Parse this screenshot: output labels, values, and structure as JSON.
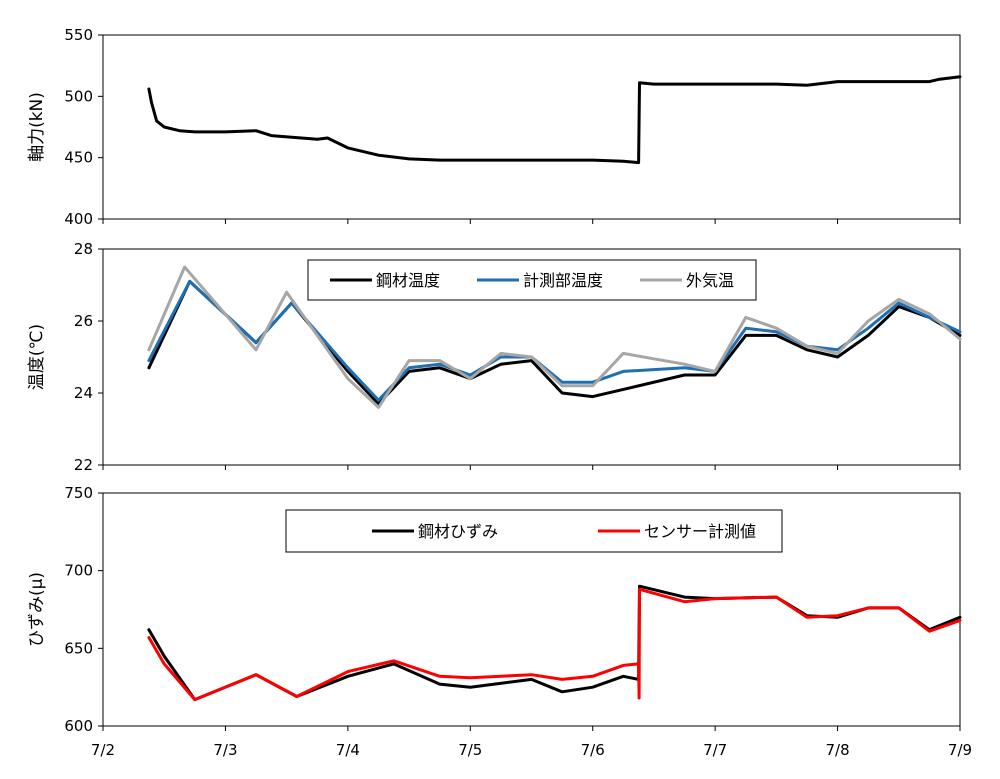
{
  "chart_data": [
    {
      "type": "line",
      "ylabel": "軸力(kN)",
      "ylim": [
        400,
        550
      ],
      "yticks": [
        "400",
        "450",
        "500",
        "550"
      ],
      "xlim": [
        "7/2",
        "7/9"
      ],
      "series": [
        {
          "color": "#000000",
          "x": [
            "7/2 09:00",
            "7/2 09:30",
            "7/2 10:30",
            "7/2 12:00",
            "7/2 15:00",
            "7/2 18:00",
            "7/3 00:00",
            "7/3 06:00",
            "7/3 09:00",
            "7/3 18:00",
            "7/3 20:00",
            "7/4 00:00",
            "7/4 06:00",
            "7/4 12:00",
            "7/4 18:00",
            "7/5 00:00",
            "7/5 12:00",
            "7/5 18:00",
            "7/6 00:00",
            "7/6 06:00",
            "7/6 09:00",
            "7/6 09:10",
            "7/6 12:00",
            "7/7 00:00",
            "7/7 12:00",
            "7/7 18:00",
            "7/8 00:00",
            "7/8 12:00",
            "7/8 18:00",
            "7/8 20:00",
            "7/9 00:00"
          ],
          "values": [
            506,
            495,
            480,
            475,
            472,
            471,
            471,
            472,
            468,
            465,
            466,
            458,
            452,
            449,
            448,
            448,
            448,
            448,
            448,
            447,
            446,
            511,
            510,
            510,
            510,
            509,
            512,
            512,
            512,
            514,
            516
          ]
        }
      ]
    },
    {
      "type": "line",
      "ylabel": "温度(℃)",
      "ylim": [
        22,
        28
      ],
      "yticks": [
        "22",
        "24",
        "26",
        "28"
      ],
      "xlim": [
        "7/2",
        "7/9"
      ],
      "legend": "top-center",
      "series": [
        {
          "name": "鋼材温度",
          "color": "#000000",
          "x": [
            "7/2 09:00",
            "7/2 17:00",
            "7/3 06:00",
            "7/3 13:00",
            "7/4 00:00",
            "7/4 06:00",
            "7/4 12:00",
            "7/4 18:00",
            "7/5 00:00",
            "7/5 06:00",
            "7/5 12:00",
            "7/5 18:00",
            "7/6 00:00",
            "7/6 06:00",
            "7/6 18:00",
            "7/7 00:00",
            "7/7 06:00",
            "7/7 12:00",
            "7/7 18:00",
            "7/8 00:00",
            "7/8 06:00",
            "7/8 12:00",
            "7/8 18:00",
            "7/9 00:00"
          ],
          "values": [
            24.7,
            27.1,
            25.4,
            26.5,
            24.6,
            23.7,
            24.6,
            24.7,
            24.4,
            24.8,
            24.9,
            24.0,
            23.9,
            24.1,
            24.5,
            24.5,
            25.6,
            25.6,
            25.2,
            25.0,
            25.6,
            26.4,
            26.1,
            25.6
          ]
        },
        {
          "name": "計測部温度",
          "color": "#1f6fb2",
          "x": [
            "7/2 09:00",
            "7/2 17:00",
            "7/3 06:00",
            "7/3 13:00",
            "7/4 00:00",
            "7/4 06:00",
            "7/4 12:00",
            "7/4 18:00",
            "7/5 00:00",
            "7/5 06:00",
            "7/5 12:00",
            "7/5 18:00",
            "7/6 00:00",
            "7/6 06:00",
            "7/6 18:00",
            "7/7 00:00",
            "7/7 06:00",
            "7/7 12:00",
            "7/7 18:00",
            "7/8 00:00",
            "7/8 06:00",
            "7/8 12:00",
            "7/8 18:00",
            "7/9 00:00"
          ],
          "values": [
            24.9,
            27.1,
            25.4,
            26.5,
            24.7,
            23.8,
            24.7,
            24.8,
            24.5,
            25.0,
            25.0,
            24.3,
            24.3,
            24.6,
            24.7,
            24.6,
            25.8,
            25.7,
            25.3,
            25.2,
            25.8,
            26.5,
            26.1,
            25.7
          ]
        },
        {
          "name": "外気温",
          "color": "#a6a6a6",
          "x": [
            "7/2 09:00",
            "7/2 16:00",
            "7/3 06:00",
            "7/3 12:00",
            "7/4 00:00",
            "7/4 06:00",
            "7/4 12:00",
            "7/4 18:00",
            "7/5 00:00",
            "7/5 06:00",
            "7/5 12:00",
            "7/5 18:00",
            "7/6 00:00",
            "7/6 06:00",
            "7/6 18:00",
            "7/7 00:00",
            "7/7 06:00",
            "7/7 12:00",
            "7/7 18:00",
            "7/8 00:00",
            "7/8 06:00",
            "7/8 12:00",
            "7/8 18:00",
            "7/9 00:00"
          ],
          "values": [
            25.2,
            27.5,
            25.2,
            26.8,
            24.4,
            23.6,
            24.9,
            24.9,
            24.4,
            25.1,
            25.0,
            24.2,
            24.2,
            25.1,
            24.8,
            24.6,
            26.1,
            25.8,
            25.3,
            25.1,
            26.0,
            26.6,
            26.2,
            25.5
          ]
        }
      ]
    },
    {
      "type": "line",
      "ylabel": "ひずみ(μ)",
      "ylim": [
        600,
        750
      ],
      "yticks": [
        "600",
        "650",
        "700",
        "750"
      ],
      "xlim": [
        "7/2",
        "7/9"
      ],
      "xticks": [
        "7/2",
        "7/3",
        "7/4",
        "7/5",
        "7/6",
        "7/7",
        "7/8",
        "7/9"
      ],
      "legend": "top-center",
      "series": [
        {
          "name": "鋼材ひずみ",
          "color": "#000000",
          "x": [
            "7/2 09:00",
            "7/2 12:00",
            "7/2 18:00",
            "7/3 06:00",
            "7/3 14:00",
            "7/4 00:00",
            "7/4 09:00",
            "7/4 18:00",
            "7/5 00:00",
            "7/5 12:00",
            "7/5 18:00",
            "7/6 00:00",
            "7/6 06:00",
            "7/6 09:00",
            "7/6 09:10",
            "7/6 18:00",
            "7/7 00:00",
            "7/7 12:00",
            "7/7 18:00",
            "7/8 00:00",
            "7/8 06:00",
            "7/8 12:00",
            "7/8 18:00",
            "7/9 00:00"
          ],
          "values": [
            662,
            645,
            617,
            633,
            619,
            632,
            640,
            627,
            625,
            630,
            622,
            625,
            632,
            630,
            690,
            683,
            682,
            683,
            671,
            670,
            676,
            676,
            662,
            670
          ]
        },
        {
          "name": "センサー計測値",
          "color": "#ff0000",
          "x": [
            "7/2 09:00",
            "7/2 12:00",
            "7/2 18:00",
            "7/3 06:00",
            "7/3 14:00",
            "7/4 00:00",
            "7/4 09:00",
            "7/4 18:00",
            "7/5 00:00",
            "7/5 12:00",
            "7/5 18:00",
            "7/6 00:00",
            "7/6 06:00",
            "7/6 09:00",
            "7/6 09:05",
            "7/6 09:10",
            "7/6 18:00",
            "7/7 00:00",
            "7/7 12:00",
            "7/7 18:00",
            "7/8 00:00",
            "7/8 06:00",
            "7/8 12:00",
            "7/8 18:00",
            "7/9 00:00"
          ],
          "values": [
            657,
            640,
            617,
            633,
            619,
            635,
            642,
            632,
            631,
            633,
            630,
            632,
            639,
            640,
            618,
            688,
            680,
            682,
            683,
            670,
            671,
            676,
            676,
            661,
            668
          ]
        }
      ]
    }
  ]
}
